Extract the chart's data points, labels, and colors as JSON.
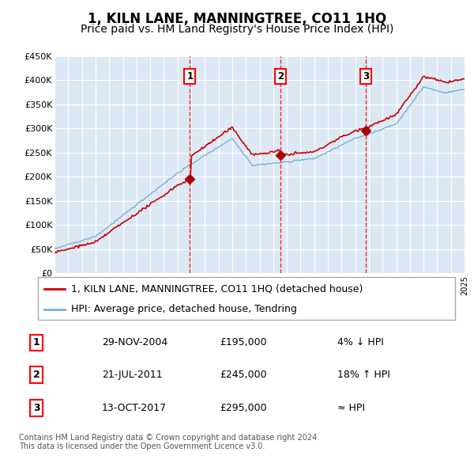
{
  "title": "1, KILN LANE, MANNINGTREE, CO11 1HQ",
  "subtitle": "Price paid vs. HM Land Registry's House Price Index (HPI)",
  "ylim": [
    0,
    450000
  ],
  "yticks": [
    0,
    50000,
    100000,
    150000,
    200000,
    250000,
    300000,
    350000,
    400000,
    450000
  ],
  "ytick_labels": [
    "£0",
    "£50K",
    "£100K",
    "£150K",
    "£200K",
    "£250K",
    "£300K",
    "£350K",
    "£400K",
    "£450K"
  ],
  "plot_bg_color": "#dce9f5",
  "grid_color": "#ffffff",
  "line_color_red": "#cc0000",
  "line_color_blue": "#7ab0d4",
  "transactions": [
    {
      "date": "29-NOV-2004",
      "price": 195000,
      "year": 2004.91,
      "label": "1",
      "note": "4% ↓ HPI"
    },
    {
      "date": "21-JUL-2011",
      "price": 245000,
      "year": 2011.55,
      "label": "2",
      "note": "18% ↑ HPI"
    },
    {
      "date": "13-OCT-2017",
      "price": 295000,
      "year": 2017.78,
      "label": "3",
      "note": "≈ HPI"
    }
  ],
  "legend_line1": "1, KILN LANE, MANNINGTREE, CO11 1HQ (detached house)",
  "legend_line2": "HPI: Average price, detached house, Tendring",
  "footnote": "Contains HM Land Registry data © Crown copyright and database right 2024.\nThis data is licensed under the Open Government Licence v3.0.",
  "title_fontsize": 12,
  "subtitle_fontsize": 10,
  "tick_fontsize": 8,
  "legend_fontsize": 9
}
